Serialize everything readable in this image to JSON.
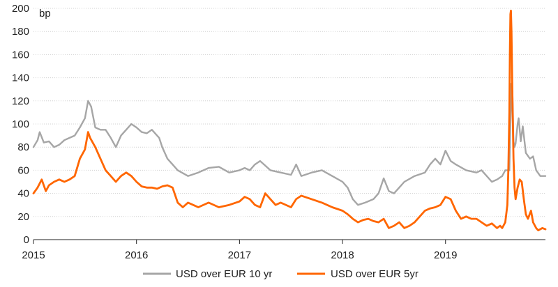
{
  "chart_data": {
    "type": "line",
    "title": "",
    "xlabel": "",
    "ylabel": "",
    "y_unit_label": "bp",
    "ylim": [
      0,
      200
    ],
    "y_ticks": [
      0,
      20,
      40,
      60,
      80,
      100,
      120,
      140,
      160,
      180,
      200
    ],
    "xlim": [
      2015.0,
      2019.97
    ],
    "x_ticks": [
      "2015",
      "2016",
      "2017",
      "2018",
      "2019"
    ],
    "grid": "horizontal dotted",
    "legend_position": "bottom",
    "series": [
      {
        "name": "USD over EUR 10 yr",
        "color": "#a6a6a6",
        "points": [
          [
            2015.0,
            80
          ],
          [
            2015.04,
            86
          ],
          [
            2015.06,
            93
          ],
          [
            2015.1,
            84
          ],
          [
            2015.15,
            85
          ],
          [
            2015.2,
            80
          ],
          [
            2015.25,
            82
          ],
          [
            2015.3,
            86
          ],
          [
            2015.35,
            88
          ],
          [
            2015.4,
            90
          ],
          [
            2015.45,
            97
          ],
          [
            2015.5,
            105
          ],
          [
            2015.53,
            120
          ],
          [
            2015.56,
            115
          ],
          [
            2015.6,
            97
          ],
          [
            2015.65,
            95
          ],
          [
            2015.7,
            95
          ],
          [
            2015.75,
            88
          ],
          [
            2015.8,
            80
          ],
          [
            2015.85,
            90
          ],
          [
            2015.9,
            95
          ],
          [
            2015.95,
            100
          ],
          [
            2016.0,
            97
          ],
          [
            2016.05,
            93
          ],
          [
            2016.1,
            92
          ],
          [
            2016.15,
            95
          ],
          [
            2016.22,
            88
          ],
          [
            2016.25,
            80
          ],
          [
            2016.3,
            70
          ],
          [
            2016.35,
            65
          ],
          [
            2016.4,
            60
          ],
          [
            2016.5,
            55
          ],
          [
            2016.6,
            58
          ],
          [
            2016.7,
            62
          ],
          [
            2016.8,
            63
          ],
          [
            2016.9,
            58
          ],
          [
            2017.0,
            60
          ],
          [
            2017.05,
            62
          ],
          [
            2017.1,
            60
          ],
          [
            2017.15,
            65
          ],
          [
            2017.2,
            68
          ],
          [
            2017.3,
            60
          ],
          [
            2017.4,
            58
          ],
          [
            2017.5,
            56
          ],
          [
            2017.55,
            65
          ],
          [
            2017.6,
            55
          ],
          [
            2017.7,
            58
          ],
          [
            2017.8,
            60
          ],
          [
            2017.9,
            55
          ],
          [
            2018.0,
            50
          ],
          [
            2018.05,
            45
          ],
          [
            2018.1,
            35
          ],
          [
            2018.15,
            30
          ],
          [
            2018.22,
            32
          ],
          [
            2018.3,
            35
          ],
          [
            2018.35,
            40
          ],
          [
            2018.4,
            53
          ],
          [
            2018.45,
            42
          ],
          [
            2018.5,
            40
          ],
          [
            2018.55,
            45
          ],
          [
            2018.6,
            50
          ],
          [
            2018.7,
            55
          ],
          [
            2018.8,
            58
          ],
          [
            2018.85,
            65
          ],
          [
            2018.9,
            70
          ],
          [
            2018.95,
            65
          ],
          [
            2019.0,
            77
          ],
          [
            2019.05,
            68
          ],
          [
            2019.1,
            65
          ],
          [
            2019.2,
            60
          ],
          [
            2019.3,
            58
          ],
          [
            2019.35,
            60
          ],
          [
            2019.4,
            55
          ],
          [
            2019.45,
            50
          ],
          [
            2019.5,
            52
          ],
          [
            2019.55,
            55
          ],
          [
            2019.58,
            60
          ],
          [
            2019.62,
            60
          ],
          [
            2019.63,
            100
          ],
          [
            2019.64,
            135
          ],
          [
            2019.65,
            128
          ],
          [
            2019.66,
            85
          ],
          [
            2019.67,
            80
          ],
          [
            2019.68,
            83
          ],
          [
            2019.7,
            100
          ],
          [
            2019.71,
            105
          ],
          [
            2019.73,
            85
          ],
          [
            2019.75,
            98
          ],
          [
            2019.78,
            75
          ],
          [
            2019.82,
            70
          ],
          [
            2019.85,
            72
          ],
          [
            2019.88,
            60
          ],
          [
            2019.92,
            55
          ],
          [
            2019.97,
            55
          ]
        ]
      },
      {
        "name": "USD over EUR 5yr",
        "color": "#ff6600",
        "points": [
          [
            2015.0,
            40
          ],
          [
            2015.04,
            45
          ],
          [
            2015.08,
            52
          ],
          [
            2015.12,
            42
          ],
          [
            2015.15,
            47
          ],
          [
            2015.2,
            50
          ],
          [
            2015.25,
            52
          ],
          [
            2015.3,
            50
          ],
          [
            2015.35,
            52
          ],
          [
            2015.4,
            55
          ],
          [
            2015.45,
            70
          ],
          [
            2015.5,
            78
          ],
          [
            2015.53,
            93
          ],
          [
            2015.55,
            88
          ],
          [
            2015.6,
            80
          ],
          [
            2015.65,
            70
          ],
          [
            2015.7,
            60
          ],
          [
            2015.75,
            55
          ],
          [
            2015.8,
            50
          ],
          [
            2015.85,
            55
          ],
          [
            2015.9,
            58
          ],
          [
            2015.95,
            55
          ],
          [
            2016.0,
            50
          ],
          [
            2016.05,
            46
          ],
          [
            2016.1,
            45
          ],
          [
            2016.15,
            45
          ],
          [
            2016.2,
            44
          ],
          [
            2016.25,
            46
          ],
          [
            2016.3,
            47
          ],
          [
            2016.35,
            45
          ],
          [
            2016.4,
            32
          ],
          [
            2016.45,
            28
          ],
          [
            2016.5,
            32
          ],
          [
            2016.55,
            30
          ],
          [
            2016.6,
            28
          ],
          [
            2016.7,
            32
          ],
          [
            2016.8,
            28
          ],
          [
            2016.9,
            30
          ],
          [
            2017.0,
            33
          ],
          [
            2017.05,
            37
          ],
          [
            2017.1,
            35
          ],
          [
            2017.15,
            30
          ],
          [
            2017.2,
            28
          ],
          [
            2017.25,
            40
          ],
          [
            2017.3,
            35
          ],
          [
            2017.35,
            30
          ],
          [
            2017.4,
            32
          ],
          [
            2017.5,
            28
          ],
          [
            2017.55,
            35
          ],
          [
            2017.6,
            38
          ],
          [
            2017.7,
            35
          ],
          [
            2017.8,
            32
          ],
          [
            2017.85,
            30
          ],
          [
            2017.9,
            28
          ],
          [
            2018.0,
            25
          ],
          [
            2018.05,
            22
          ],
          [
            2018.1,
            18
          ],
          [
            2018.15,
            15
          ],
          [
            2018.2,
            17
          ],
          [
            2018.25,
            18
          ],
          [
            2018.3,
            16
          ],
          [
            2018.35,
            15
          ],
          [
            2018.4,
            18
          ],
          [
            2018.45,
            10
          ],
          [
            2018.5,
            12
          ],
          [
            2018.55,
            15
          ],
          [
            2018.6,
            10
          ],
          [
            2018.65,
            12
          ],
          [
            2018.7,
            15
          ],
          [
            2018.75,
            20
          ],
          [
            2018.8,
            25
          ],
          [
            2018.85,
            27
          ],
          [
            2018.9,
            28
          ],
          [
            2018.95,
            30
          ],
          [
            2019.0,
            37
          ],
          [
            2019.05,
            35
          ],
          [
            2019.1,
            25
          ],
          [
            2019.15,
            18
          ],
          [
            2019.2,
            20
          ],
          [
            2019.25,
            18
          ],
          [
            2019.3,
            18
          ],
          [
            2019.35,
            15
          ],
          [
            2019.4,
            12
          ],
          [
            2019.45,
            14
          ],
          [
            2019.5,
            10
          ],
          [
            2019.53,
            12
          ],
          [
            2019.55,
            10
          ],
          [
            2019.58,
            15
          ],
          [
            2019.6,
            30
          ],
          [
            2019.61,
            60
          ],
          [
            2019.62,
            110
          ],
          [
            2019.625,
            160
          ],
          [
            2019.63,
            195
          ],
          [
            2019.635,
            198
          ],
          [
            2019.64,
            180
          ],
          [
            2019.65,
            120
          ],
          [
            2019.66,
            70
          ],
          [
            2019.67,
            45
          ],
          [
            2019.68,
            35
          ],
          [
            2019.7,
            45
          ],
          [
            2019.72,
            52
          ],
          [
            2019.74,
            50
          ],
          [
            2019.76,
            35
          ],
          [
            2019.78,
            22
          ],
          [
            2019.8,
            18
          ],
          [
            2019.83,
            25
          ],
          [
            2019.85,
            15
          ],
          [
            2019.88,
            10
          ],
          [
            2019.9,
            8
          ],
          [
            2019.94,
            10
          ],
          [
            2019.97,
            9
          ]
        ]
      }
    ]
  }
}
